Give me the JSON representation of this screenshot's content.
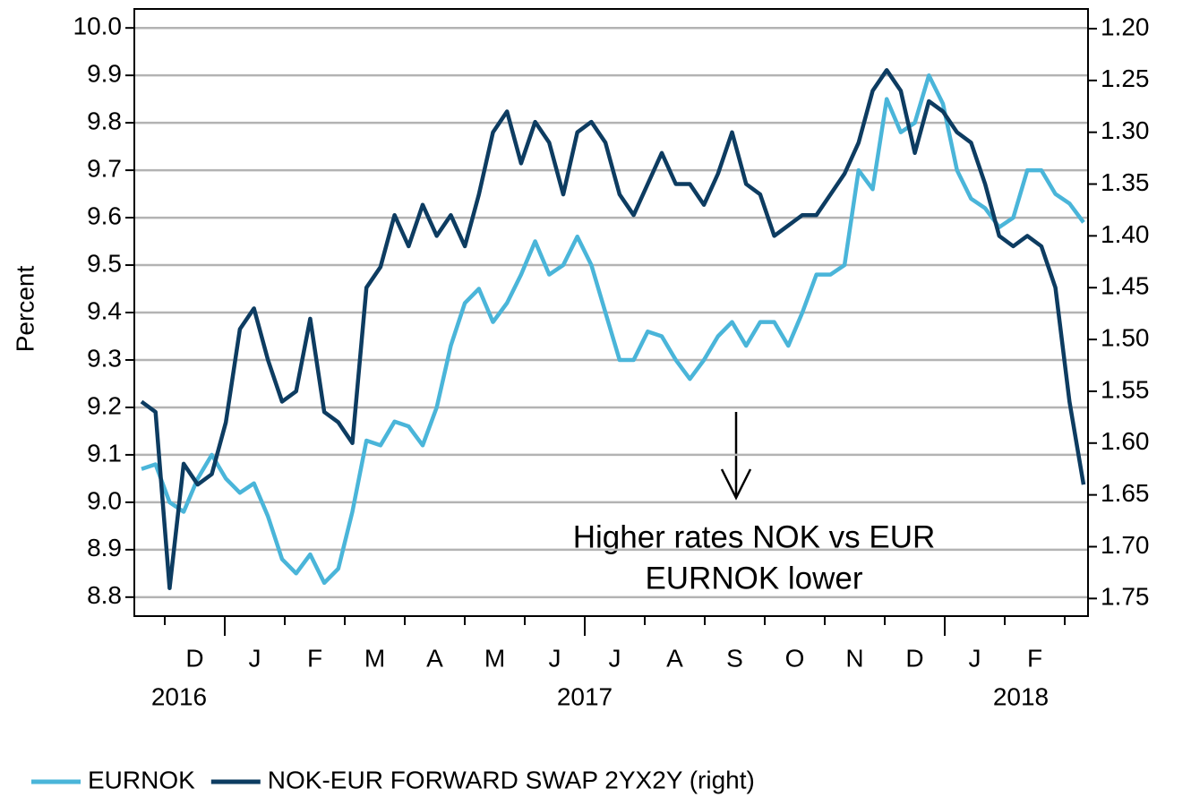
{
  "chart_data": {
    "type": "line",
    "y_label": "Percent",
    "ylim": [
      8.76,
      10.04
    ],
    "yticks": [
      {
        "value": 8.8,
        "label": "8.8"
      },
      {
        "value": 8.9,
        "label": "8.9"
      },
      {
        "value": 9.0,
        "label": "9.0"
      },
      {
        "value": 9.1,
        "label": "9.1"
      },
      {
        "value": 9.2,
        "label": "9.2"
      },
      {
        "value": 9.3,
        "label": "9.3"
      },
      {
        "value": 9.4,
        "label": "9.4"
      },
      {
        "value": 9.5,
        "label": "9.5"
      },
      {
        "value": 9.6,
        "label": "9.6"
      },
      {
        "value": 9.7,
        "label": "9.7"
      },
      {
        "value": 9.8,
        "label": "9.8"
      },
      {
        "value": 9.9,
        "label": "9.9"
      },
      {
        "value": 10.0,
        "label": "10.0"
      }
    ],
    "y2lim": [
      1.767,
      1.181
    ],
    "y2ticks": [
      {
        "value": 1.2,
        "label": "1.20"
      },
      {
        "value": 1.25,
        "label": "1.25"
      },
      {
        "value": 1.3,
        "label": "1.30"
      },
      {
        "value": 1.35,
        "label": "1.35"
      },
      {
        "value": 1.4,
        "label": "1.40"
      },
      {
        "value": 1.45,
        "label": "1.45"
      },
      {
        "value": 1.5,
        "label": "1.50"
      },
      {
        "value": 1.55,
        "label": "1.55"
      },
      {
        "value": 1.6,
        "label": "1.60"
      },
      {
        "value": 1.65,
        "label": "1.65"
      },
      {
        "value": 1.7,
        "label": "1.70"
      },
      {
        "value": 1.75,
        "label": "1.75"
      }
    ],
    "grid": true,
    "x_tick_labels": [
      "D",
      "J",
      "F",
      "M",
      "A",
      "M",
      "J",
      "J",
      "A",
      "S",
      "O",
      "N",
      "D",
      "J",
      "F"
    ],
    "year_labels": [
      "2016",
      "2017",
      "2018"
    ],
    "annotation": [
      "Higher rates NOK vs EUR",
      "EURNOK lower"
    ],
    "legend": "bottom-left",
    "series": [
      {
        "name": "EURNOK",
        "color": "#4ab5d9",
        "values": [
          9.07,
          9.08,
          9.0,
          8.98,
          9.05,
          9.1,
          9.05,
          9.02,
          9.04,
          8.97,
          8.88,
          8.85,
          8.89,
          8.83,
          8.86,
          8.98,
          9.13,
          9.12,
          9.17,
          9.16,
          9.12,
          9.2,
          9.33,
          9.42,
          9.45,
          9.38,
          9.42,
          9.48,
          9.55,
          9.48,
          9.5,
          9.56,
          9.5,
          9.4,
          9.3,
          9.3,
          9.36,
          9.35,
          9.3,
          9.26,
          9.3,
          9.35,
          9.38,
          9.33,
          9.38,
          9.38,
          9.33,
          9.4,
          9.48,
          9.48,
          9.5,
          9.7,
          9.66,
          9.85,
          9.78,
          9.8,
          9.9,
          9.84,
          9.7,
          9.64,
          9.62,
          9.58,
          9.6,
          9.7,
          9.7,
          9.65,
          9.63,
          9.59
        ]
      },
      {
        "name": "NOK-EUR FORWARD SWAP 2YX2Y (right)",
        "color": "#0d3c61",
        "axis": "y2",
        "values": [
          1.56,
          1.57,
          1.74,
          1.62,
          1.64,
          1.63,
          1.58,
          1.49,
          1.47,
          1.52,
          1.56,
          1.55,
          1.48,
          1.57,
          1.58,
          1.6,
          1.45,
          1.43,
          1.38,
          1.41,
          1.37,
          1.4,
          1.38,
          1.41,
          1.36,
          1.3,
          1.28,
          1.33,
          1.29,
          1.31,
          1.36,
          1.3,
          1.29,
          1.31,
          1.36,
          1.38,
          1.35,
          1.32,
          1.35,
          1.35,
          1.37,
          1.34,
          1.3,
          1.35,
          1.36,
          1.4,
          1.39,
          1.38,
          1.38,
          1.36,
          1.34,
          1.31,
          1.26,
          1.24,
          1.26,
          1.32,
          1.27,
          1.28,
          1.3,
          1.31,
          1.35,
          1.4,
          1.41,
          1.4,
          1.41,
          1.45,
          1.56,
          1.64
        ]
      }
    ]
  }
}
